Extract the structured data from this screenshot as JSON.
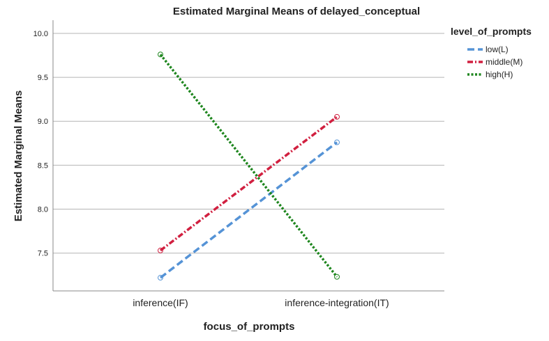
{
  "chart_data": {
    "type": "line",
    "title": "Estimated Marginal Means of delayed_conceptual",
    "xlabel": "focus_of_prompts",
    "ylabel": "Estimated Marginal Means",
    "categories": [
      "inference(IF)",
      "inference-integration(IT)"
    ],
    "ylim": [
      7.07,
      10.15
    ],
    "yticks": [
      "7.5",
      "8.0",
      "8.5",
      "9.0",
      "9.5",
      "10.0"
    ],
    "grid": true,
    "legend": {
      "title": "level_of_prompts",
      "placement": "right"
    },
    "series": [
      {
        "name": "low(L)",
        "values": [
          7.22,
          8.76
        ],
        "color": "#5593d6",
        "style": "dashed"
      },
      {
        "name": "middle(M)",
        "values": [
          7.53,
          9.05
        ],
        "color": "#d11f3f",
        "style": "dash-dot"
      },
      {
        "name": "high(H)",
        "values": [
          9.76,
          7.23
        ],
        "color": "#1e861e",
        "style": "dotted"
      }
    ]
  }
}
